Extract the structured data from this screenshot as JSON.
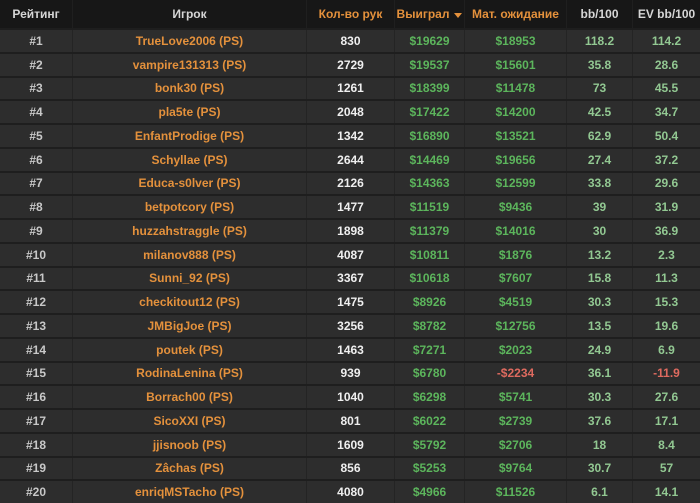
{
  "colors": {
    "accent_orange": "#e4913c",
    "money_green": "#5cb55c",
    "bb_green": "#92c892",
    "negative_red": "#de6a5f",
    "row_background": "#2d2d2d",
    "header_background": "#171717"
  },
  "header": {
    "columns": [
      {
        "id": "rating",
        "label": "Рейтинг",
        "tone": "white",
        "sorted": false
      },
      {
        "id": "player",
        "label": "Игрок",
        "tone": "white",
        "sorted": false
      },
      {
        "id": "hands",
        "label": "Кол-во рук",
        "tone": "orange",
        "sorted": false
      },
      {
        "id": "won",
        "label": "Выиграл",
        "tone": "orange",
        "sorted": true,
        "sort_direction": "desc"
      },
      {
        "id": "expectation",
        "label": "Мат. ожидание",
        "tone": "orange",
        "sorted": false
      },
      {
        "id": "bb100",
        "label": "bb/100",
        "tone": "white",
        "sorted": false
      },
      {
        "id": "ev_bb100",
        "label": "EV bb/100",
        "tone": "white",
        "sorted": false
      }
    ]
  },
  "rows": [
    {
      "rank": "#1",
      "player": "TrueLove2006 (PS)",
      "hands": "830",
      "won": "$19629",
      "expectation": "$18953",
      "bb100": "118.2",
      "ev_bb100": "114.2"
    },
    {
      "rank": "#2",
      "player": "vampire131313 (PS)",
      "hands": "2729",
      "won": "$19537",
      "expectation": "$15601",
      "bb100": "35.8",
      "ev_bb100": "28.6"
    },
    {
      "rank": "#3",
      "player": "bonk30 (PS)",
      "hands": "1261",
      "won": "$18399",
      "expectation": "$11478",
      "bb100": "73",
      "ev_bb100": "45.5"
    },
    {
      "rank": "#4",
      "player": "pla5te (PS)",
      "hands": "2048",
      "won": "$17422",
      "expectation": "$14200",
      "bb100": "42.5",
      "ev_bb100": "34.7"
    },
    {
      "rank": "#5",
      "player": "EnfantProdige (PS)",
      "hands": "1342",
      "won": "$16890",
      "expectation": "$13521",
      "bb100": "62.9",
      "ev_bb100": "50.4"
    },
    {
      "rank": "#6",
      "player": "Schyllae (PS)",
      "hands": "2644",
      "won": "$14469",
      "expectation": "$19656",
      "bb100": "27.4",
      "ev_bb100": "37.2"
    },
    {
      "rank": "#7",
      "player": "Educa-s0lver (PS)",
      "hands": "2126",
      "won": "$14363",
      "expectation": "$12599",
      "bb100": "33.8",
      "ev_bb100": "29.6"
    },
    {
      "rank": "#8",
      "player": "betpotcory (PS)",
      "hands": "1477",
      "won": "$11519",
      "expectation": "$9436",
      "bb100": "39",
      "ev_bb100": "31.9"
    },
    {
      "rank": "#9",
      "player": "huzzahstraggle (PS)",
      "hands": "1898",
      "won": "$11379",
      "expectation": "$14016",
      "bb100": "30",
      "ev_bb100": "36.9"
    },
    {
      "rank": "#10",
      "player": "milanov888 (PS)",
      "hands": "4087",
      "won": "$10811",
      "expectation": "$1876",
      "bb100": "13.2",
      "ev_bb100": "2.3"
    },
    {
      "rank": "#11",
      "player": "Sunni_92 (PS)",
      "hands": "3367",
      "won": "$10618",
      "expectation": "$7607",
      "bb100": "15.8",
      "ev_bb100": "11.3"
    },
    {
      "rank": "#12",
      "player": "checkitout12 (PS)",
      "hands": "1475",
      "won": "$8926",
      "expectation": "$4519",
      "bb100": "30.3",
      "ev_bb100": "15.3"
    },
    {
      "rank": "#13",
      "player": "JMBigJoe (PS)",
      "hands": "3256",
      "won": "$8782",
      "expectation": "$12756",
      "bb100": "13.5",
      "ev_bb100": "19.6"
    },
    {
      "rank": "#14",
      "player": "poutek (PS)",
      "hands": "1463",
      "won": "$7271",
      "expectation": "$2023",
      "bb100": "24.9",
      "ev_bb100": "6.9"
    },
    {
      "rank": "#15",
      "player": "RodinaLenina (PS)",
      "hands": "939",
      "won": "$6780",
      "expectation": "-$2234",
      "bb100": "36.1",
      "ev_bb100": "-11.9"
    },
    {
      "rank": "#16",
      "player": "Borrach00 (PS)",
      "hands": "1040",
      "won": "$6298",
      "expectation": "$5741",
      "bb100": "30.3",
      "ev_bb100": "27.6"
    },
    {
      "rank": "#17",
      "player": "SicoXXI (PS)",
      "hands": "801",
      "won": "$6022",
      "expectation": "$2739",
      "bb100": "37.6",
      "ev_bb100": "17.1"
    },
    {
      "rank": "#18",
      "player": "jjisnoob (PS)",
      "hands": "1609",
      "won": "$5792",
      "expectation": "$2706",
      "bb100": "18",
      "ev_bb100": "8.4"
    },
    {
      "rank": "#19",
      "player": "Zâchas (PS)",
      "hands": "856",
      "won": "$5253",
      "expectation": "$9764",
      "bb100": "30.7",
      "ev_bb100": "57"
    },
    {
      "rank": "#20",
      "player": "enriqMSTacho (PS)",
      "hands": "4080",
      "won": "$4966",
      "expectation": "$11526",
      "bb100": "6.1",
      "ev_bb100": "14.1"
    }
  ]
}
